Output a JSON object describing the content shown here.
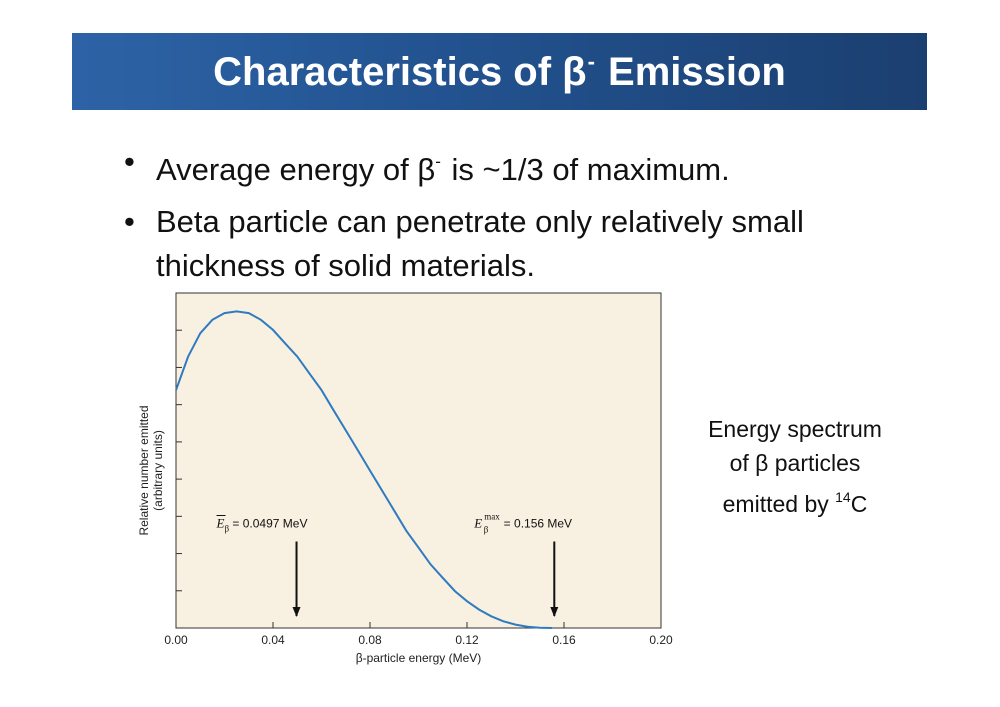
{
  "slide": {
    "title_prefix": "Characteristics of β",
    "title_sup": "-",
    "title_suffix": " Emission",
    "bullets": [
      {
        "pre": "Average energy of β",
        "sup": "-",
        "post": " is ~1/3 of maximum."
      },
      {
        "pre": "Beta particle can penetrate only relatively small thickness of solid materials.",
        "sup": "",
        "post": ""
      }
    ],
    "caption": {
      "line1": "Energy spectrum",
      "line2": "of β particles",
      "line3_pre": "emitted by ",
      "line3_sup": "14",
      "line3_post": "C"
    },
    "colors": {
      "title_bar": "#22528f",
      "curve": "#2f7bbf",
      "plot_bg": "#f8f0e1"
    }
  },
  "chart_data": {
    "type": "line",
    "xlabel": "β-particle energy (MeV)",
    "ylabel_line1": "Relative number emitted",
    "ylabel_line2": "(arbitrary units)",
    "xlim": [
      0,
      0.2
    ],
    "ylim": [
      0,
      1
    ],
    "xticks": [
      "0.00",
      "0.04",
      "0.08",
      "0.12",
      "0.16",
      "0.20"
    ],
    "y_minor_ticks": 8,
    "grid": false,
    "series": [
      {
        "x": [
          0.0,
          0.005,
          0.01,
          0.015,
          0.02,
          0.025,
          0.03,
          0.035,
          0.04,
          0.045,
          0.05,
          0.055,
          0.06,
          0.065,
          0.07,
          0.075,
          0.08,
          0.085,
          0.09,
          0.095,
          0.1,
          0.105,
          0.11,
          0.115,
          0.12,
          0.125,
          0.13,
          0.135,
          0.14,
          0.145,
          0.15,
          0.155
        ],
        "values": [
          0.71,
          0.81,
          0.88,
          0.92,
          0.94,
          0.945,
          0.94,
          0.92,
          0.89,
          0.85,
          0.81,
          0.76,
          0.71,
          0.65,
          0.59,
          0.53,
          0.47,
          0.41,
          0.35,
          0.29,
          0.24,
          0.19,
          0.15,
          0.11,
          0.08,
          0.055,
          0.035,
          0.02,
          0.01,
          0.004,
          0.001,
          0.0
        ]
      }
    ],
    "annotations": [
      {
        "symbol": "E",
        "sub": "β",
        "sup": "",
        "text": " = 0.0497 MeV",
        "x": 0.0497,
        "label_y": 0.3,
        "bar": true
      },
      {
        "symbol": "E",
        "sub": "β",
        "sup": "max",
        "text": " = 0.156 MeV",
        "x": 0.156,
        "label_y": 0.3,
        "bar": false
      }
    ]
  }
}
